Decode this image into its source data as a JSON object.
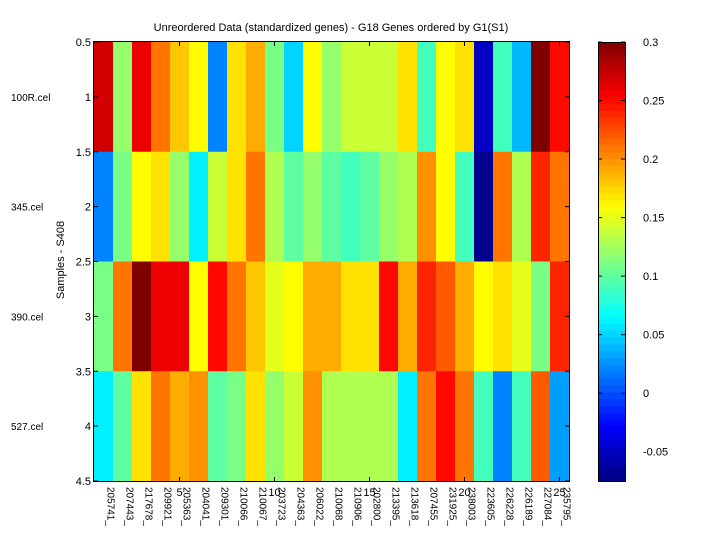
{
  "chart_data": {
    "type": "heatmap",
    "title": "Unreordered Data (standardized genes) - G18 Genes ordered by G1(S1)",
    "xlabel": "",
    "ylabel": "Samples - S408",
    "rows": [
      "100R.cel",
      "345.cel",
      "390.cel",
      "527.cel"
    ],
    "columns": [
      "205741_",
      "207443_",
      "217678_",
      "209921_",
      "205363_",
      "204041_",
      "209301_",
      "210066_",
      "210067_",
      "203723_",
      "204363_",
      "206022_",
      "210068_",
      "210906_",
      "202800_",
      "213395_",
      "213618_",
      "207455_",
      "231925_",
      "238003_",
      "223605_",
      "226228_",
      "226189_",
      "227084_",
      "235795_"
    ],
    "x_ticks": [
      5,
      10,
      15,
      20,
      25
    ],
    "y_ticks": [
      "0.5",
      "1",
      "1.5",
      "2",
      "2.5",
      "3",
      "3.5",
      "4",
      "4.5"
    ],
    "xlim": [
      0.5,
      25.5
    ],
    "ylim": [
      0.5,
      4.5
    ],
    "colormap": "jet",
    "clim": [
      -0.075,
      0.3
    ],
    "colorbar_ticks": [
      "0.3",
      "0.25",
      "0.2",
      "0.15",
      "0.1",
      "0.05",
      "0",
      "-0.05"
    ],
    "values": [
      [
        0.27,
        0.12,
        0.26,
        0.21,
        0.18,
        0.16,
        0.02,
        0.17,
        0.19,
        0.11,
        0.05,
        0.16,
        0.12,
        0.14,
        0.14,
        0.14,
        0.17,
        0.09,
        0.16,
        0.17,
        -0.05,
        0.09,
        0.04,
        0.3,
        0.25
      ],
      [
        0.02,
        0.11,
        0.16,
        0.17,
        0.12,
        0.06,
        0.14,
        0.17,
        0.21,
        0.13,
        0.1,
        0.12,
        0.1,
        0.09,
        0.1,
        0.12,
        0.13,
        0.2,
        0.16,
        0.09,
        -0.07,
        0.21,
        0.13,
        0.24,
        0.21
      ],
      [
        0.11,
        0.21,
        0.31,
        0.26,
        0.26,
        0.16,
        0.25,
        0.21,
        0.18,
        0.15,
        0.16,
        0.19,
        0.19,
        0.17,
        0.17,
        0.25,
        0.19,
        0.24,
        0.22,
        0.19,
        0.16,
        0.17,
        0.15,
        0.11,
        0.24
      ],
      [
        0.06,
        0.1,
        0.17,
        0.21,
        0.19,
        0.2,
        0.1,
        0.11,
        0.17,
        0.12,
        0.14,
        0.2,
        0.13,
        0.13,
        0.13,
        0.13,
        0.06,
        0.21,
        0.25,
        0.21,
        0.09,
        0.02,
        0.09,
        0.22,
        0.03
      ]
    ]
  }
}
